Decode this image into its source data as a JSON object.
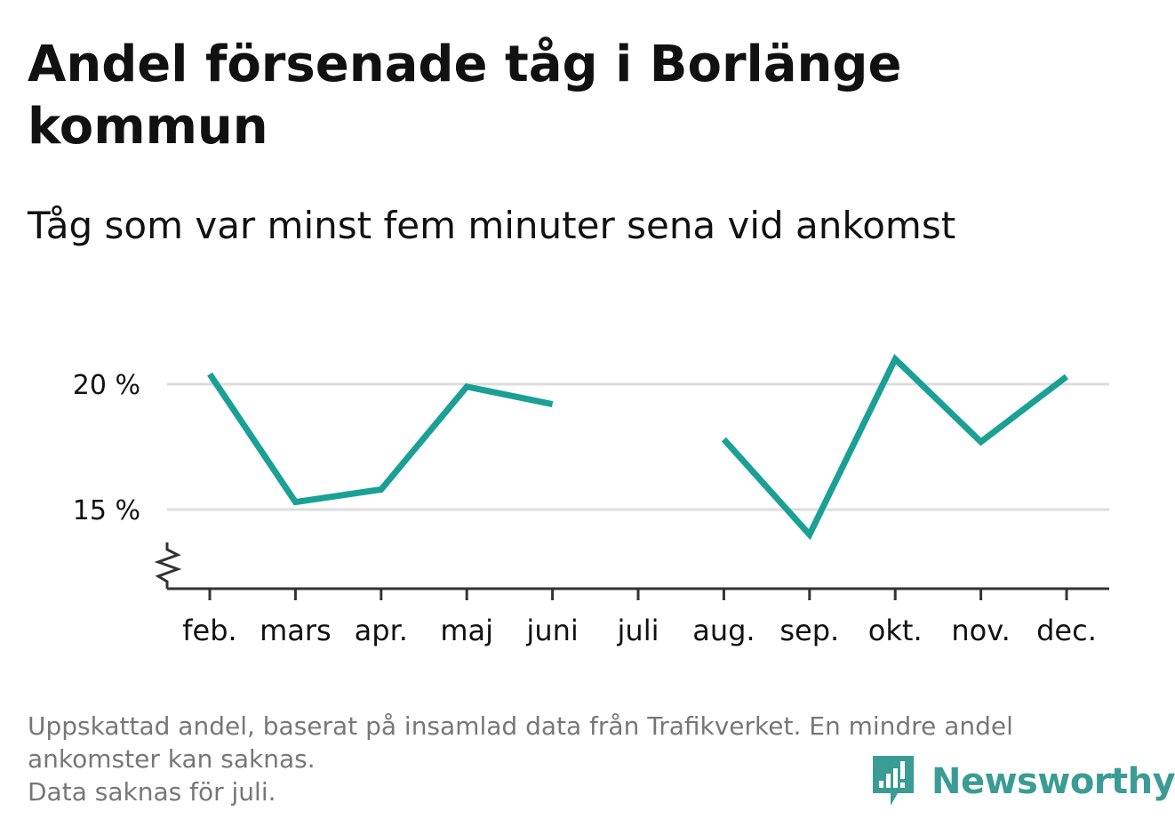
{
  "title": "Andel försenade tåg i Borlänge kommun",
  "subtitle": "Tåg som var minst fem minuter sena vid ankomst",
  "footnote": {
    "line1": "Uppskattad andel, baserat på insamlad data från Trafikverket. En mindre andel",
    "line2": "ankomster kan saknas.",
    "line3": "Data saknas för juli."
  },
  "logo": {
    "text": "Newsworthy",
    "color": "#3a9c94"
  },
  "colors": {
    "line": "#1aa095",
    "grid": "#dddddd",
    "axis": "#333333",
    "text": "#111111",
    "muted": "#777777"
  },
  "chart_data": {
    "type": "line",
    "categories": [
      "feb.",
      "mars",
      "apr.",
      "maj",
      "juni",
      "juli",
      "aug.",
      "sep.",
      "okt.",
      "nov.",
      "dec."
    ],
    "series": [
      {
        "values": [
          20.4,
          15.3,
          15.8,
          19.9,
          19.2,
          null,
          17.8,
          14.0,
          21.0,
          17.7,
          20.3
        ]
      }
    ],
    "yticks": [
      15,
      20
    ],
    "ytick_labels": [
      "15 %",
      "20 %"
    ],
    "ylim": [
      12.2,
      22.0
    ],
    "y_axis_break": true,
    "grid": "horizontal",
    "xlabel": "",
    "ylabel": ""
  }
}
